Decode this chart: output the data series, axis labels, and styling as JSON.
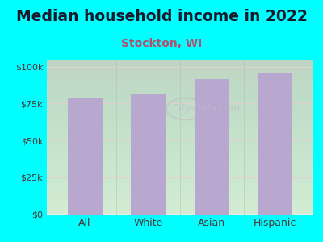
{
  "title": "Median household income in 2022",
  "subtitle": "Stockton, WI",
  "categories": [
    "All",
    "White",
    "Asian",
    "Hispanic"
  ],
  "values": [
    78500,
    81000,
    91500,
    95500
  ],
  "bar_color": "#b8a8d0",
  "background_outer": "#00ffff",
  "background_inner_top": "#e8f5e8",
  "background_inner_bottom": "#f5fff5",
  "title_fontsize": 13.5,
  "subtitle_fontsize": 10,
  "ylabel_ticks": [
    "$0",
    "$25k",
    "$50k",
    "$75k",
    "$100k"
  ],
  "ytick_values": [
    0,
    25000,
    50000,
    75000,
    100000
  ],
  "ylim": [
    0,
    105000
  ],
  "title_color": "#1a1a2e",
  "subtitle_color": "#b05070",
  "tick_color": "#4a3535",
  "grid_color": "#e0d0d0",
  "watermark": "City-Data.com",
  "watermark_color": "#c0b8c8"
}
